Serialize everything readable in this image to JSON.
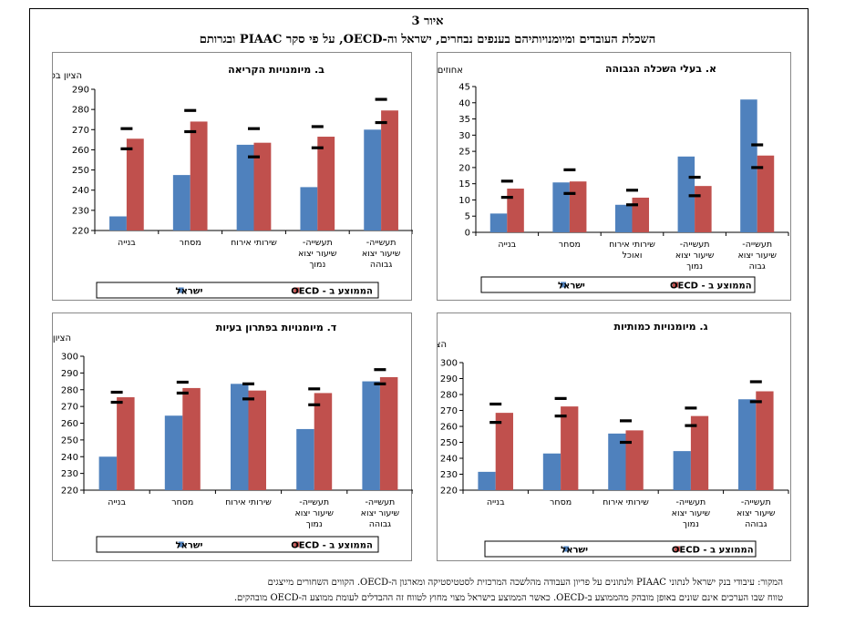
{
  "figure": {
    "number": "איור 3",
    "title": "השכלת העובדים ומיומנויותיהם בענפים נבחרים, ישראל וה-OECD, על פי סקר PIAAC ובגרותם",
    "source_line1": "המקור: עיבודי בנק ישראל לנתוני PIAAC ולנתונים על פריון העבודה מהלשכה המרכזית לסטטיסטיקה ומארגון ה-OECD. הקווים השחורים מייצגים",
    "source_line2": "טווח שבו הערכים אינם שונים באופן מובהק מהממוצע ב-OECD. כאשר הממוצע בישראל מצוי מחוץ לטווח זה ההבדלים לעומת ממוצע ה-OECD מובהקים."
  },
  "colors": {
    "israel": "#4F81BD",
    "oecd": "#C0504D",
    "range": "#000000"
  },
  "legend": {
    "israel": "ישראל",
    "oecd": "הממוצע ב - OECD"
  },
  "chart_data": [
    {
      "id": "a",
      "type": "bar",
      "title": "א. בעלי השכלה הגבוהה",
      "ylabel": "אחוזים",
      "ylim": [
        0,
        45
      ],
      "yticks": [
        0,
        5,
        10,
        15,
        20,
        25,
        30,
        35,
        40,
        45
      ],
      "categories": [
        [
          "בנייה"
        ],
        [
          "מסחר"
        ],
        [
          "שירותי אירוח",
          "ואוכל"
        ],
        [
          "תעשייה-",
          "שיעור יצוא",
          "נמוך"
        ],
        [
          "תעשייה-",
          "שיעור יצוא",
          "גבוה"
        ]
      ],
      "series": [
        {
          "name": "ישראל",
          "values": [
            5.8,
            15.4,
            8.5,
            23.4,
            41.0
          ]
        },
        {
          "name": "הממוצע ב - OECD",
          "values": [
            13.5,
            15.7,
            10.7,
            14.3,
            23.7
          ]
        }
      ],
      "significance_range": [
        [
          10.8,
          15.8
        ],
        [
          12.0,
          19.3
        ],
        [
          8.5,
          13.0
        ],
        [
          11.3,
          17.0
        ],
        [
          20.0,
          27.0
        ]
      ]
    },
    {
      "id": "b",
      "type": "bar",
      "title": "ב. מיומנויות הקריאה",
      "ylabel": "הציון בסקר",
      "ylim": [
        220,
        290
      ],
      "yticks": [
        220,
        230,
        240,
        250,
        260,
        270,
        280,
        290
      ],
      "categories": [
        [
          "בנייה"
        ],
        [
          "מסחר"
        ],
        [
          "שירותי אירוח"
        ],
        [
          "תעשייה-",
          "שיעור יצוא",
          "נמוך"
        ],
        [
          "תעשייה-",
          "שיעור יצוא",
          "גבוהה"
        ]
      ],
      "series": [
        {
          "name": "ישראל",
          "values": [
            227,
            247.5,
            262.5,
            241.5,
            270
          ]
        },
        {
          "name": "הממוצע ב - OECD",
          "values": [
            265.5,
            274,
            263.5,
            266.5,
            279.5
          ]
        }
      ],
      "significance_range": [
        [
          260.5,
          270.5
        ],
        [
          269,
          279.5
        ],
        [
          256.5,
          270.5
        ],
        [
          261,
          271.5
        ],
        [
          273.5,
          285
        ]
      ]
    },
    {
      "id": "c",
      "type": "bar",
      "title": "ג. מיומנויות כמותיות",
      "ylabel": "הציון בסקר",
      "ylim": [
        220,
        300
      ],
      "yticks": [
        220,
        230,
        240,
        250,
        260,
        270,
        280,
        290,
        300
      ],
      "categories": [
        [
          "בנייה"
        ],
        [
          "מסחר"
        ],
        [
          "שירותי אירוח"
        ],
        [
          "תעשייה-",
          "שיעור יצוא",
          "נמוך"
        ],
        [
          "תעשייה-",
          "שיעור יצוא",
          "גבוהה"
        ]
      ],
      "series": [
        {
          "name": "ישראל",
          "values": [
            231.5,
            243,
            255.5,
            244.5,
            277
          ]
        },
        {
          "name": "הממוצע ב - OECD",
          "values": [
            268.5,
            272.5,
            257.5,
            266.5,
            282
          ]
        }
      ],
      "significance_range": [
        [
          262.5,
          274
        ],
        [
          266.5,
          277.5
        ],
        [
          250,
          263.5
        ],
        [
          260.5,
          271.5
        ],
        [
          275.5,
          288
        ]
      ]
    },
    {
      "id": "d",
      "type": "bar",
      "title": "ד. מיומנויות בפתרון בעיות",
      "ylabel": "הציון בסקר",
      "ylim": [
        220,
        300
      ],
      "yticks": [
        220,
        230,
        240,
        250,
        260,
        270,
        280,
        290,
        300
      ],
      "categories": [
        [
          "בנייה"
        ],
        [
          "מסחר"
        ],
        [
          "שירותי אירוח"
        ],
        [
          "תעשייה-",
          "שיעור יצוא",
          "נמוך"
        ],
        [
          "תעשייה-",
          "שיעור יצוא",
          "גבוהה"
        ]
      ],
      "series": [
        {
          "name": "ישראל",
          "values": [
            240,
            264.5,
            283.5,
            256.5,
            285
          ]
        },
        {
          "name": "הממוצע ב - OECD",
          "values": [
            275.5,
            281,
            279.5,
            278,
            287.5
          ]
        }
      ],
      "significance_range": [
        [
          272.5,
          278.5
        ],
        [
          278,
          284.5
        ],
        [
          274.5,
          283.5
        ],
        [
          271,
          280.5
        ],
        [
          283.5,
          292
        ]
      ]
    }
  ]
}
